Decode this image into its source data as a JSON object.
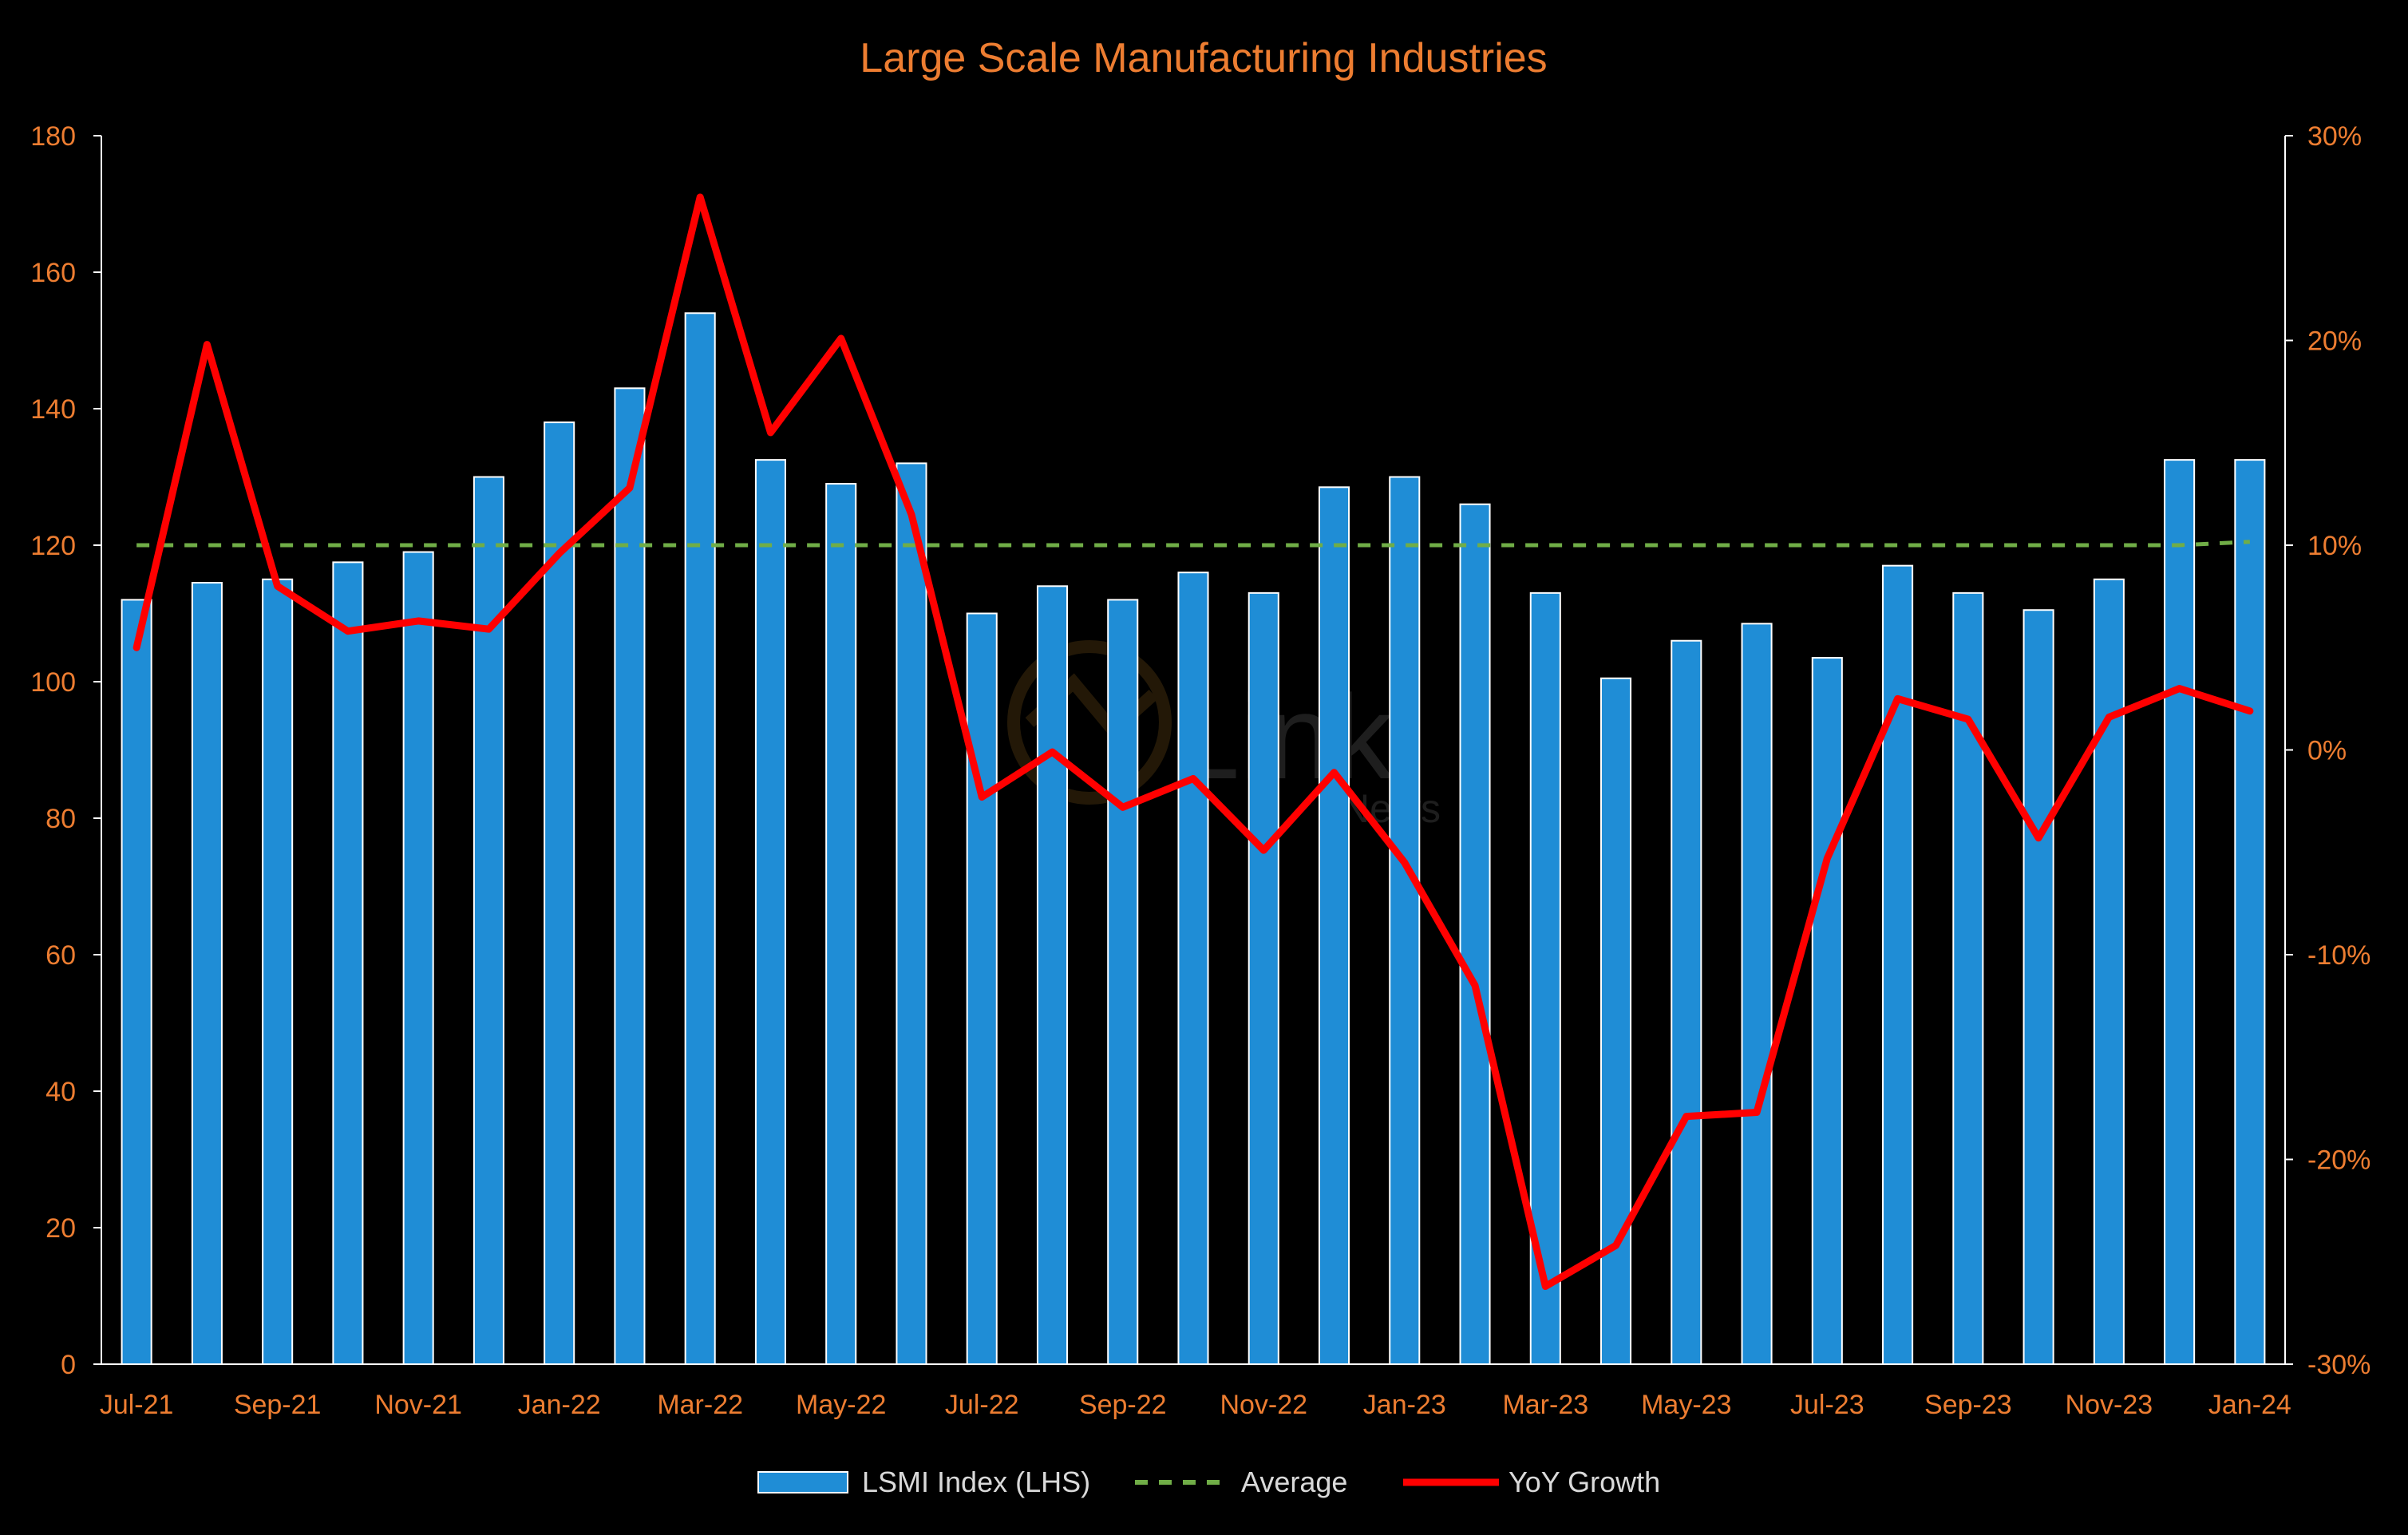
{
  "chart_data": {
    "type": "bar",
    "title": "Large Scale Manufacturing Industries",
    "categories": [
      "Jul-21",
      "Aug-21",
      "Sep-21",
      "Oct-21",
      "Nov-21",
      "Dec-21",
      "Jan-22",
      "Feb-22",
      "Mar-22",
      "Apr-22",
      "May-22",
      "Jun-22",
      "Jul-22",
      "Aug-22",
      "Sep-22",
      "Oct-22",
      "Nov-22",
      "Dec-22",
      "Jan-23",
      "Feb-23",
      "Mar-23",
      "Apr-23",
      "May-23",
      "Jun-23",
      "Jul-23",
      "Aug-23",
      "Sep-23",
      "Oct-23",
      "Nov-23",
      "Dec-23",
      "Jan-24"
    ],
    "x_tick_labels": [
      "Jul-21",
      "Sep-21",
      "Nov-21",
      "Jan-22",
      "Mar-22",
      "May-22",
      "Jul-22",
      "Sep-22",
      "Nov-22",
      "Jan-23",
      "Mar-23",
      "May-23",
      "Jul-23",
      "Sep-23",
      "Nov-23",
      "Jan-24"
    ],
    "series": [
      {
        "name": "LSMI Index (LHS)",
        "type": "bar",
        "axis": "left",
        "color": "#1f8dd6",
        "values": [
          112,
          114.5,
          115,
          117.5,
          119,
          130,
          138,
          143,
          154,
          132.5,
          129,
          132,
          110,
          114,
          112,
          116,
          113,
          128.5,
          130,
          126,
          113,
          100.5,
          106,
          108.5,
          103.5,
          117,
          113,
          110.5,
          115,
          132.5,
          132.5
        ]
      },
      {
        "name": "Average",
        "type": "line",
        "axis": "left",
        "color": "#70ad47",
        "dashed": true,
        "values": [
          120,
          120,
          120,
          120,
          120,
          120,
          120,
          120,
          120,
          120,
          120,
          120,
          120,
          120,
          120,
          120,
          120,
          120,
          120,
          120,
          120,
          120,
          120,
          120,
          120,
          120,
          120,
          120,
          120,
          120,
          120.5
        ]
      },
      {
        "name": "YoY Growth",
        "type": "line",
        "axis": "right",
        "color": "#ff0000",
        "values": [
          5,
          19.8,
          8,
          5.8,
          6.3,
          5.9,
          9.6,
          12.8,
          27,
          15.5,
          20.1,
          11.5,
          -2.3,
          -0.1,
          -2.8,
          -1.4,
          -4.9,
          -1.1,
          -5.5,
          -11.5,
          -26.2,
          -24.2,
          -17.9,
          -17.7,
          -5.3,
          2.5,
          1.5,
          -4.3,
          1.6,
          3.0,
          1.9
        ]
      }
    ],
    "y_left": {
      "min": 0,
      "max": 180,
      "step": 20,
      "tick_labels": [
        "0",
        "20",
        "40",
        "60",
        "80",
        "100",
        "120",
        "140",
        "160",
        "180"
      ]
    },
    "y_right": {
      "min": -30,
      "max": 30,
      "step": 10,
      "unit": "%",
      "tick_labels": [
        "-30%",
        "-20%",
        "-10%",
        "0%",
        "10%",
        "20%",
        "30%"
      ]
    },
    "grid": false,
    "legend": {
      "position": "bottom",
      "items": [
        "LSMI Index (LHS)",
        "Average",
        "YoY Growth"
      ]
    },
    "colors": {
      "background": "#000000",
      "title": "#ed7d31",
      "tick_labels": "#ed7d31",
      "axis": "#ffffff",
      "legend_text": "#d9d9d9",
      "bar_edge": "#ffffff"
    }
  },
  "watermark": {
    "text": "Link",
    "subtext": "News"
  }
}
